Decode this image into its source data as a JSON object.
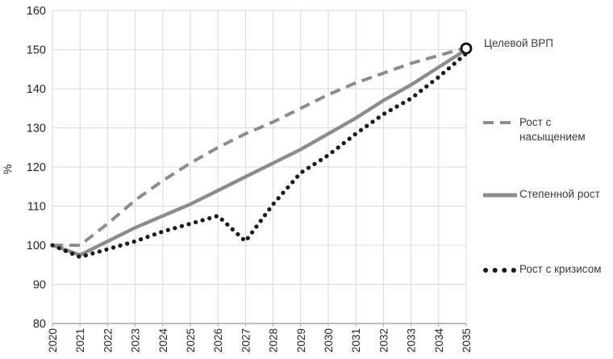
{
  "chart_data": {
    "type": "line",
    "title": "",
    "ylabel": "%",
    "xlabel": "",
    "x": [
      2020,
      2021,
      2022,
      2023,
      2024,
      2025,
      2026,
      2027,
      2028,
      2029,
      2030,
      2031,
      2032,
      2033,
      2034,
      2035
    ],
    "ylim": [
      80,
      160
    ],
    "ytick_step": 10,
    "grid": true,
    "legend_position": "right",
    "series": [
      {
        "name": "Рост с насыщением",
        "style": "dashed",
        "color": "#8c8c8c",
        "values": [
          100,
          100,
          105.5,
          111.5,
          116.5,
          121,
          125,
          128.5,
          131.5,
          135,
          138.5,
          141.5,
          144,
          146.5,
          148.5,
          150.5
        ]
      },
      {
        "name": "Степенной рост",
        "style": "solid",
        "color": "#8c8c8c",
        "values": [
          100,
          97.5,
          101,
          104.5,
          107.5,
          110.5,
          114,
          117.5,
          121,
          124.5,
          128.5,
          132.5,
          137,
          141,
          145.5,
          150
        ]
      },
      {
        "name": "Рост с кризисом",
        "style": "dotted",
        "color": "#1a1a1a",
        "values": [
          100,
          97,
          99,
          101,
          103.5,
          105.5,
          107.5,
          101,
          110.5,
          118.5,
          123,
          128.5,
          133.5,
          137.5,
          143,
          149
        ]
      }
    ],
    "annotation": {
      "label": "Целевой ВРП",
      "x": 2035,
      "y": 150.3,
      "marker": "open-circle"
    }
  },
  "colors": {
    "grid": "#d9d9d9",
    "axis": "#a6a6a6",
    "tick_text": "#262626",
    "legend_text": "#3a3a3a",
    "marker_ring": "#111111",
    "background": "#ffffff"
  }
}
